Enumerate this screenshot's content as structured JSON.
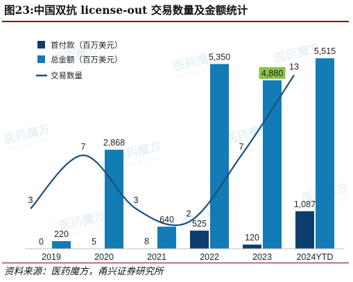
{
  "title": "图23:中国双抗 license-out 交易数量及金额统计",
  "source": "资料来源：医药魔方，甬兴证券研究所",
  "watermark": "医药魔方",
  "watermark_sub": "PHARMCUBE",
  "colors": {
    "upfront": "#0b3e6e",
    "total": "#137bb6",
    "deals": "#1b4f79",
    "highlight": "#8bc34a",
    "axis": "#bdbdbd",
    "rule": "#8a0000"
  },
  "chart_data": {
    "type": "bar",
    "categories": [
      "2019",
      "2020",
      "2021",
      "2022",
      "2023",
      "2024YTD"
    ],
    "series": [
      {
        "name": "首付款（百万美元）",
        "kind": "bar",
        "values": [
          0,
          5,
          8,
          525,
          120,
          1087
        ],
        "labels": [
          "0",
          "5",
          "8",
          "525",
          "120",
          "1,087"
        ]
      },
      {
        "name": "总金额（百万美元）",
        "kind": "bar",
        "values": [
          220,
          2868,
          640,
          5350,
          4880,
          5515
        ],
        "labels": [
          "220",
          "2,868",
          "640",
          "5,350",
          "4,880",
          "5,515"
        ],
        "highlight_index": 4
      },
      {
        "name": "交易数量",
        "kind": "line",
        "smooth": true,
        "values": [
          3,
          7,
          3,
          2,
          7,
          13
        ],
        "labels": [
          "3",
          "7",
          "3",
          "2",
          "7",
          "13"
        ]
      }
    ],
    "ylim": [
      0,
      5800
    ],
    "y2lim": [
      0,
      15
    ],
    "legend_position": "top-left",
    "grid": false
  }
}
